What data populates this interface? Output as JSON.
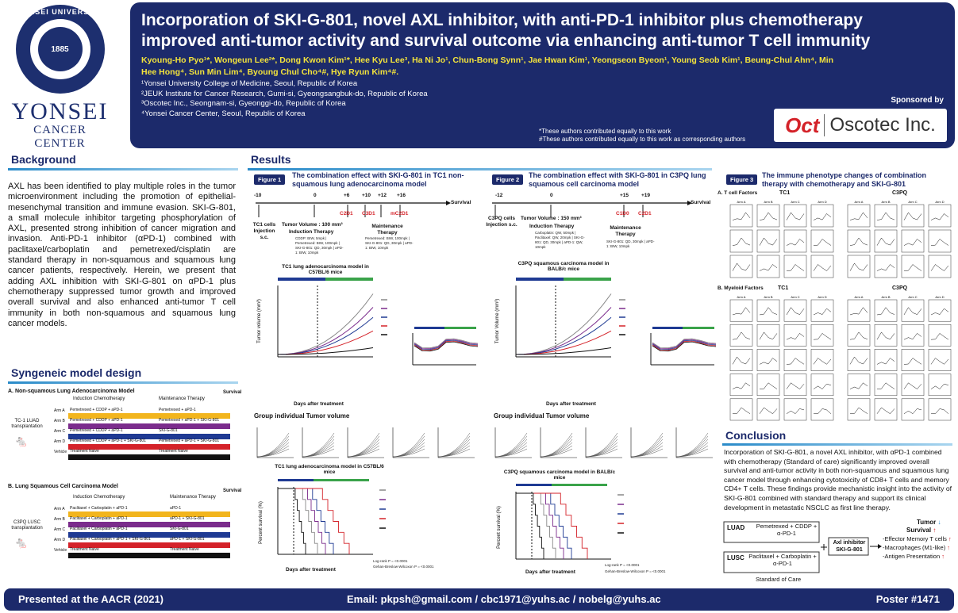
{
  "logo": {
    "university_ring": "YONSEI UNIVERSITY",
    "seal_year": "1885",
    "name": "YONSEI",
    "subname": "CANCER CENTER"
  },
  "header": {
    "title": "Incorporation of SKI-G-801, novel AXL inhibitor, with anti-PD-1 inhibitor plus chemotherapy improved anti-tumor activity and survival outcome via enhancing anti-tumor T cell immunity",
    "authors": "Kyoung-Ho Pyo¹*, Wongeun Lee²*, Dong Kwon Kim¹*, Hee Kyu Lee³, Ha Ni Jo¹, Chun-Bong Synn¹, Jae Hwan Kim¹, Yeongseon Byeon¹, Young Seob Kim¹, Beung-Chul Ahn⁴, Min Hee Hong⁴, Sun Min Lim⁴, Byoung Chul Cho⁴#, Hye Ryun Kim⁴#.",
    "affiliations": [
      "¹Yonsei University College of Medicine, Seoul, Republic of Korea",
      "²JEUK Institute for Cancer Research, Gumi-si, Gyeongsangbuk-do, Republic of Korea",
      "³Oscotec Inc., Seongnam-si, Gyeonggi-do, Republic of Korea",
      "⁴Yonsei Cancer Center, Seoul, Republic of Korea"
    ],
    "contrib_1": "*These authors contributed equally to this work",
    "contrib_2": "#These authors contributed equally to this work as corresponding authors",
    "sponsor_label": "Sponsored by",
    "sponsor_logo": "Oct",
    "sponsor_name": "Oscotec Inc."
  },
  "background": {
    "heading": "Background",
    "text": "AXL has been identified to play multiple roles in the tumor microenvironment including the promotion of epithelial-mesenchymal transition and immune evasion. SKI-G-801, a small molecule inhibitor targeting phosphorylation of AXL, presented strong inhibition of cancer migration and invasion. Anti-PD-1 inhibitor (αPD-1) combined with paclitaxel/carboplatin and pemetrexed/cisplatin are standard therapy in non-squamous and squamous lung cancer patients, respectively. Herein, we present that adding AXL inhibition with SKI-G-801 on αPD-1 plus chemotherapy suppressed tumor growth and improved overall survival and also enhanced anti-tumor T cell immunity in both non-squamous and squamous lung cancer models."
  },
  "syngeneic": {
    "heading": "Syngeneic model design",
    "panel_a": {
      "title": "A. Non-squamous Lung Adenocarcinoma Model",
      "induction": "Induction Chemotherapy",
      "maintenance": "Maintenance Therapy",
      "survival": "Survival",
      "model": "TC-1 LUAD transplantation",
      "arms": [
        {
          "arm": "Arm A",
          "induction": "Pemetrexed + CDDP + aPD-1",
          "maint": "Pemetrexed + aPD-1",
          "color": "#f2b51d"
        },
        {
          "arm": "Arm B",
          "induction": "Pemetrexed + CDDP + aPD-1",
          "maint": "Pemetrexed + aPD-1 + SKI-G-801",
          "color": "#7b2c8c"
        },
        {
          "arm": "Arm C",
          "induction": "Pemetrexed + CDDP + aPD-1",
          "maint": "SKI-G-801",
          "color": "#1f3a93"
        },
        {
          "arm": "Arm D",
          "induction": "Pemetrexed + CDDP + aPD-1 + SKI-G-801",
          "maint": "Pemetrexed + aPD-1 + SKI-G-801",
          "color": "#d42229"
        },
        {
          "arm": "Vehicle",
          "induction": "Treatment Naive",
          "maint": "Treatment Naive",
          "color": "#111111"
        }
      ]
    },
    "panel_b": {
      "title": "B. Lung Squamous Cell Carcinoma Model",
      "induction": "Induction Chemotherapy",
      "maintenance": "Maintenance Therapy",
      "survival": "Survival",
      "model": "C3PQ LUSC transplantation",
      "arms": [
        {
          "arm": "Arm A",
          "induction": "Paclitaxel + Carboplatin + aPD-1",
          "maint": "aPD-1",
          "color": "#f2b51d"
        },
        {
          "arm": "Arm B",
          "induction": "Paclitaxel + Carboplatin + aPD-1",
          "maint": "aPD-1 + SKI-G-801",
          "color": "#7b2c8c"
        },
        {
          "arm": "Arm C",
          "induction": "Paclitaxel + Carboplatin + aPD-1",
          "maint": "SKI-G-801",
          "color": "#1f3a93"
        },
        {
          "arm": "Arm D",
          "induction": "Paclitaxel + Carboplatin + aPD-1 + SKI-G-801",
          "maint": "aPD-1 + SKI-G-801",
          "color": "#d42229"
        },
        {
          "arm": "Vehicle",
          "induction": "Treatment Naive",
          "maint": "Treatment Naive",
          "color": "#111111"
        }
      ]
    }
  },
  "results": {
    "heading": "Results",
    "fig1": {
      "tag": "Figure 1",
      "title": "The combination effect with SKI-G-801 in TC1 non-squamous lung adenocarcinoma model",
      "days": [
        "-10",
        "0",
        "+6",
        "+10",
        "+12",
        "+16"
      ],
      "cycles": [
        "C2D1",
        "C3D1",
        "mC2D1"
      ],
      "survival": "Survival",
      "inj": "TC1 cells Injection s.c.",
      "tumor_vol": "Tumor Volume : 100 mm³",
      "induction": "Induction Therapy",
      "induction_detail": "CDDP: BIW, 5mpk | Pemetrexed: BIW, 100mpk | SKI-G-801: QD, 30mpk | aPD-1: BIW, 10mpk",
      "maint": "Maintenance Therapy",
      "maint_detail": "Pemetrexed: BIW, 100mpk | SKI-G-801: QD, 30mpk | aPD-1: BIW, 10mpk",
      "tumor_plot_title": "TC1 lung adenocarcinoma model in C57BL/6 mice",
      "group_title": "Group individual Tumor volume",
      "survival_title": "TC1 lung adenocarcinoma model in C57BL/6 mice",
      "xlabel_days": "Days after treatment",
      "ylabel_tv": "Tumor volume (mm³)",
      "ylabel_surv": "Percent survival (%)",
      "logrank": "Log-rank P = <0.0001",
      "gehan": "Gehan-Breslow-Wilcoxon P = <0.0001"
    },
    "fig2": {
      "tag": "Figure 2",
      "title": "The combination effect with SKI-G-801 in C3PQ lung squamous cell carcinoma model",
      "days": [
        "-12",
        "0",
        "+15",
        "+19"
      ],
      "cycles": [
        "C1D0",
        "C2D1"
      ],
      "survival": "Survival",
      "inj": "C3PQ cells Injection s.c.",
      "tumor_vol": "Tumor Volume : 150 mm³",
      "induction": "Induction Therapy",
      "induction_detail": "Carboplatin: QW, 50mpk | Paclitaxel: QW, 20mpk | SKI-G-801: QD, 30mpk | aPD-1: QW, 10mpk",
      "maint": "Maintenance Therapy",
      "maint_detail": "SKI-G-801: QD, 30mpk | aPD-1: BIW, 10mpk",
      "tumor_plot_title": "C3PQ squamous carcinoma model in BALB/c mice",
      "group_title": "Group individual Tumor volume",
      "survival_title": "C3PQ squamous carcinoma model in BALB/c mice",
      "xlabel_days": "Days after treatment",
      "ylabel_tv": "Tumor Volume (mm³)",
      "ylabel_surv": "Percent survival (%)",
      "logrank": "Log-rank P = <0.0001",
      "gehan": "Gehan-Breslow-Wilcoxon P = <0.0001"
    },
    "fig3": {
      "tag": "Figure 3",
      "title": "The immune phenotype changes of combination therapy with chemotherapy and SKI-G-801",
      "a_title": "A. T cell Factors",
      "b_title": "B. Myeloid Factors",
      "tc1": "TC1",
      "c3pq": "C3PQ",
      "arms": [
        "Arm A",
        "Arm B",
        "Arm C",
        "Arm D"
      ]
    },
    "legend_chemo": "chemotherapy",
    "legend_maint": "maintaining therapy"
  },
  "conclusion": {
    "heading": "Conclusion",
    "text": "Incorporation of SKI-G-801, a novel AXL inhibitor, with αPD-1 combined with chemotherapy (Standard of care) significantly improved overall survival and anti-tumor activity in both non-squamous and squamous lung cancer model through enhancing cytotoxicity of CD8+ T cells and memory CD4+ T cells. These findings provide mechanistic insight into the activity of SKI-G-801 combined with standard therapy and support its clinical development in metastatic NSCLC as first line therapy.",
    "luad": "LUAD",
    "luad_tx": "Pemetrexed + CDDP + α-PD-1",
    "lusc": "LUSC",
    "lusc_tx": "Paclitaxel + Carboplatin + α-PD-1",
    "soc": "Standard of Care",
    "axl": "Axl inhibitor SKI-G-801",
    "tumor": "Tumor",
    "survival": "Survival",
    "effects": [
      "-Effector Memory T cells",
      "-Macrophages (M1-like)",
      "-Antigen Presentation"
    ]
  },
  "footer": {
    "left": "Presented at the AACR (2021)",
    "center": "Email: pkpsh@gmail.com / cbc1971@yuhs.ac / nobelg@yuhs.ac",
    "right": "Poster #1471"
  },
  "colors": {
    "navy": "#1c2a6b",
    "accent_blue": "#2a8bc9",
    "red": "#d42229",
    "yellow": "#f3e33c"
  }
}
